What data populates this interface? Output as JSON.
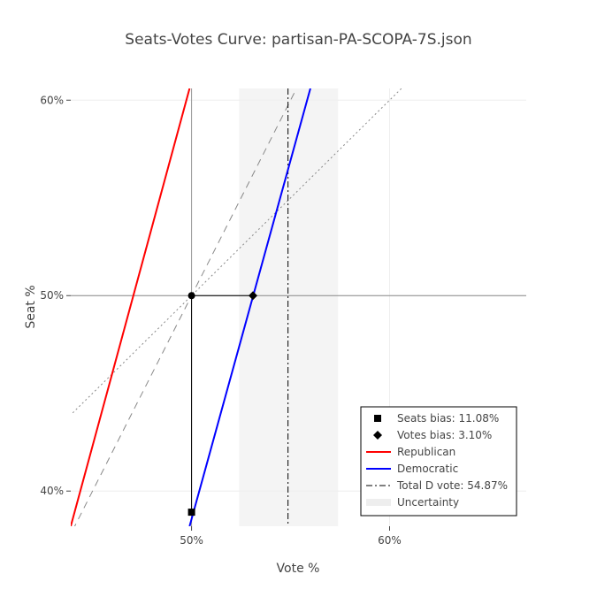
{
  "chart_data": {
    "type": "line",
    "title": "Seats-Votes Curve: partisan-PA-SCOPA-7S.json",
    "xlabel": "Vote %",
    "ylabel": "Seat %",
    "xlim": [
      43.9,
      66.9
    ],
    "ylim": [
      38.2,
      60.6
    ],
    "x_ticks": [
      {
        "value": 50,
        "label": "50%"
      },
      {
        "value": 60,
        "label": "60%"
      }
    ],
    "y_ticks": [
      {
        "value": 40,
        "label": "40%"
      },
      {
        "value": 50,
        "label": "50%"
      },
      {
        "value": 60,
        "label": "60%"
      }
    ],
    "uncertainty_band": {
      "x0": 52.4,
      "x1": 57.4
    },
    "reference_lines": {
      "vertical_x": 50,
      "horizontal_y": 50
    },
    "diagonals": {
      "slope_one": [
        [
          44,
          44
        ],
        [
          61,
          61
        ]
      ],
      "slope_two": [
        [
          44,
          38
        ],
        [
          55.3,
          60.6
        ]
      ]
    },
    "series": [
      {
        "name": "Republican",
        "color": "#ff0000",
        "points": [
          [
            43.9,
            38.2
          ],
          [
            49.9,
            60.6
          ]
        ]
      },
      {
        "name": "Democratic",
        "color": "#0000ff",
        "points": [
          [
            49.9,
            38.2
          ],
          [
            56.0,
            60.6
          ]
        ]
      }
    ],
    "total_d_vote": {
      "x": 54.87,
      "label": "Total D vote: 54.87%"
    },
    "seats_bias": {
      "label": "Seats bias: 11.08%",
      "from": [
        50,
        50
      ],
      "to": [
        50,
        38.92
      ]
    },
    "votes_bias": {
      "label": "Votes bias: 3.10%",
      "from": [
        50,
        50
      ],
      "to": [
        53.1,
        50
      ]
    },
    "legend": {
      "position": "bottom-right",
      "items": [
        {
          "label": "Seats bias: 11.08%",
          "symbol": "square"
        },
        {
          "label": "Votes bias: 3.10%",
          "symbol": "diamond"
        },
        {
          "label": "Republican",
          "symbol": "line-red"
        },
        {
          "label": "Democratic",
          "symbol": "line-blue"
        },
        {
          "label": "Total D vote: 54.87%",
          "symbol": "dashdot"
        },
        {
          "label": "Uncertainty",
          "symbol": "band"
        }
      ]
    }
  }
}
